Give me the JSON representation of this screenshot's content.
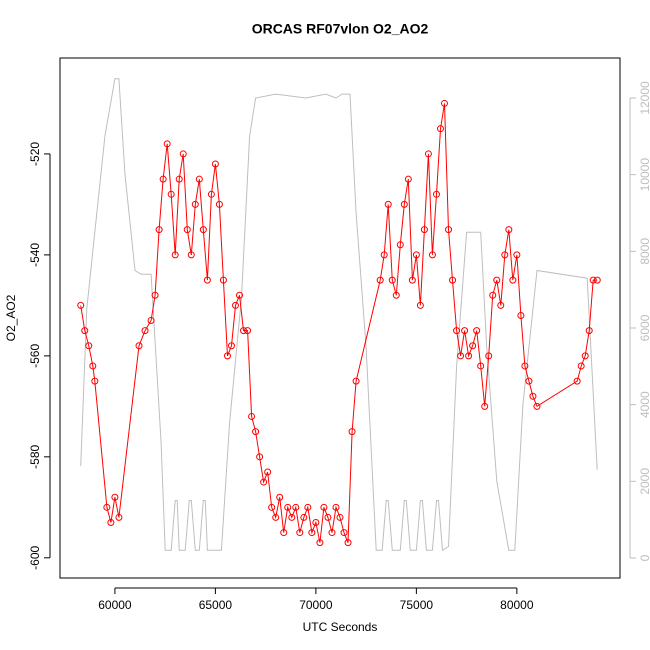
{
  "chart_data": {
    "type": "line",
    "title": "ORCAS RF07vlon O2_AO2",
    "x_label": "UTC Seconds",
    "y_label": "O2_AO2",
    "xlim": [
      57268,
      85132
    ],
    "ylim": [
      -604,
      -501
    ],
    "y2lim": [
      -522,
      13043
    ],
    "xticks": [
      60000,
      65000,
      70000,
      75000,
      80000
    ],
    "yticks": [
      -600,
      -580,
      -560,
      -540,
      -520
    ],
    "y2ticks": [
      0,
      2000,
      4000,
      6000,
      8000,
      10000,
      12000
    ],
    "grid": false,
    "series": [
      {
        "color": "#ff0000",
        "markers": true,
        "x": [
          58300,
          58500,
          58700,
          58900,
          59000,
          59600,
          59800,
          60000,
          60200,
          61200,
          61500,
          61800,
          62000,
          62200,
          62400,
          62600,
          62800,
          63000,
          63200,
          63400,
          63600,
          63800,
          64000,
          64200,
          64400,
          64600,
          64800,
          65000,
          65200,
          65400,
          65600,
          65800,
          66000,
          66200,
          66400,
          66600,
          66800,
          67000,
          67200,
          67400,
          67600,
          67800,
          68000,
          68200,
          68400,
          68600,
          68800,
          69000,
          69200,
          69400,
          69600,
          69800,
          70000,
          70200,
          70400,
          70600,
          70800,
          71000,
          71200,
          71400,
          71600,
          71800,
          72000,
          73200,
          73400,
          73600,
          73800,
          74000,
          74200,
          74400,
          74600,
          74800,
          75000,
          75200,
          75400,
          75600,
          75800,
          76000,
          76200,
          76400,
          76600,
          76800,
          77000,
          77200,
          77400,
          77600,
          77800,
          78000,
          78200,
          78400,
          78600,
          78800,
          79000,
          79200,
          79400,
          79600,
          79800,
          80000,
          80200,
          80400,
          80600,
          80800,
          81000,
          83000,
          83200,
          83400,
          83600,
          83800,
          84000
        ],
        "values": [
          -550,
          -555,
          -558,
          -562,
          -565,
          -590,
          -593,
          -588,
          -592,
          -558,
          -555,
          -553,
          -548,
          -535,
          -525,
          -518,
          -528,
          -540,
          -525,
          -520,
          -535,
          -540,
          -530,
          -525,
          -535,
          -545,
          -528,
          -522,
          -530,
          -545,
          -560,
          -558,
          -550,
          -548,
          -555,
          -555,
          -572,
          -575,
          -580,
          -585,
          -583,
          -590,
          -592,
          -588,
          -595,
          -590,
          -592,
          -590,
          -595,
          -592,
          -590,
          -595,
          -593,
          -597,
          -590,
          -592,
          -595,
          -590,
          -592,
          -595,
          -597,
          -575,
          -565,
          -545,
          -540,
          -530,
          -545,
          -548,
          -538,
          -530,
          -525,
          -545,
          -540,
          -550,
          -535,
          -520,
          -540,
          -528,
          -515,
          -510,
          -535,
          -545,
          -555,
          -560,
          -555,
          -560,
          -558,
          -555,
          -562,
          -570,
          -560,
          -548,
          -545,
          -550,
          -540,
          -535,
          -545,
          -540,
          -552,
          -562,
          -565,
          -568,
          -570,
          -565,
          -562,
          -560,
          -555,
          -545,
          -545
        ]
      },
      {
        "color": "#bebebe",
        "axis": "y2",
        "markers": false,
        "x": [
          58300,
          58600,
          59000,
          59500,
          60000,
          60200,
          60500,
          61000,
          61300,
          61800,
          62300,
          62500,
          62800,
          63000,
          63100,
          63200,
          63500,
          63700,
          63800,
          64000,
          64200,
          64400,
          64500,
          64600,
          65300,
          65700,
          66300,
          66700,
          67000,
          68000,
          69500,
          70500,
          71000,
          71300,
          71700,
          72000,
          72500,
          73000,
          73300,
          73500,
          73600,
          73800,
          74200,
          74400,
          74500,
          74700,
          75000,
          75200,
          75300,
          75500,
          75800,
          76000,
          76100,
          76300,
          76600,
          77000,
          77500,
          78200,
          78500,
          79000,
          79600,
          79900,
          80300,
          81000,
          83500,
          84000
        ],
        "values": [
          2400,
          6500,
          8500,
          11000,
          12500,
          12500,
          10000,
          7500,
          7400,
          7400,
          3000,
          200,
          200,
          1500,
          1500,
          200,
          200,
          1500,
          1500,
          200,
          200,
          1500,
          1500,
          200,
          200,
          3500,
          6800,
          11000,
          12000,
          12100,
          12000,
          12100,
          12000,
          12100,
          12100,
          9000,
          5500,
          200,
          200,
          1500,
          1500,
          200,
          200,
          1500,
          1500,
          200,
          200,
          1500,
          1500,
          200,
          200,
          1500,
          1500,
          200,
          300,
          5000,
          8500,
          8500,
          5500,
          2000,
          200,
          200,
          4000,
          7500,
          7300,
          2300
        ]
      }
    ]
  }
}
